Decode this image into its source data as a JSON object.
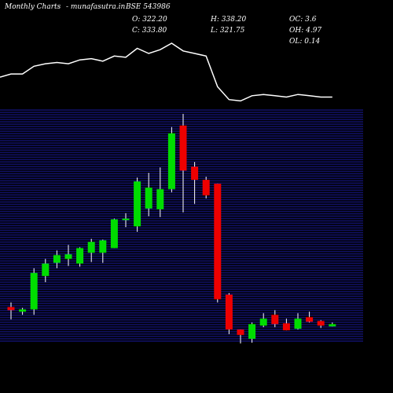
{
  "header": {
    "left": "Monthly Charts",
    "site": "-  munafasutra.in",
    "symbol": "BSE 543986",
    "open_label": "O: 322.20",
    "close_label": "C: 333.80",
    "high_label": "H: 338.20",
    "low_label": "L: 321.75",
    "oc_label": "OC: 3.6",
    "oh_label": "OH: 4.97",
    "ol_label": "OL: 0.14"
  },
  "colors": {
    "background": "#000000",
    "up": "#00dd00",
    "down": "#ee0000",
    "grid": "#1a1aa0",
    "line": "#ffffff"
  },
  "chart_data": {
    "type": "candlestick",
    "grid": true,
    "ylim": [
      200,
      500
    ],
    "candles": [
      {
        "o": 246,
        "h": 252,
        "l": 230,
        "c": 242
      },
      {
        "o": 240,
        "h": 245,
        "l": 236,
        "c": 243
      },
      {
        "o": 243,
        "h": 296,
        "l": 236,
        "c": 290
      },
      {
        "o": 286,
        "h": 308,
        "l": 278,
        "c": 302
      },
      {
        "o": 303,
        "h": 319,
        "l": 296,
        "c": 313
      },
      {
        "o": 308,
        "h": 326,
        "l": 299,
        "c": 314
      },
      {
        "o": 302,
        "h": 323,
        "l": 298,
        "c": 322
      },
      {
        "o": 316,
        "h": 334,
        "l": 304,
        "c": 330
      },
      {
        "o": 316,
        "h": 333,
        "l": 303,
        "c": 332
      },
      {
        "o": 322,
        "h": 360,
        "l": 322,
        "c": 359
      },
      {
        "o": 359,
        "h": 367,
        "l": 349,
        "c": 360
      },
      {
        "o": 350,
        "h": 413,
        "l": 343,
        "c": 408
      },
      {
        "o": 373,
        "h": 419,
        "l": 363,
        "c": 400
      },
      {
        "o": 372,
        "h": 426,
        "l": 362,
        "c": 398
      },
      {
        "o": 398,
        "h": 478,
        "l": 394,
        "c": 470
      },
      {
        "o": 480,
        "h": 495,
        "l": 368,
        "c": 422
      },
      {
        "o": 427,
        "h": 433,
        "l": 379,
        "c": 410
      },
      {
        "o": 410,
        "h": 414,
        "l": 386,
        "c": 390
      },
      {
        "o": 405,
        "h": 405,
        "l": 252,
        "c": 256
      },
      {
        "o": 262,
        "h": 264,
        "l": 211,
        "c": 217
      },
      {
        "o": 217,
        "h": 217,
        "l": 199,
        "c": 210
      },
      {
        "o": 205,
        "h": 226,
        "l": 200,
        "c": 224
      },
      {
        "o": 222,
        "h": 238,
        "l": 220,
        "c": 231
      },
      {
        "o": 236,
        "h": 242,
        "l": 220,
        "c": 224
      },
      {
        "o": 225,
        "h": 231,
        "l": 216,
        "c": 216
      },
      {
        "o": 218,
        "h": 238,
        "l": 217,
        "c": 231
      },
      {
        "o": 233,
        "h": 240,
        "l": 226,
        "c": 227
      },
      {
        "o": 228,
        "h": 229,
        "l": 219,
        "c": 222
      },
      {
        "o": 221,
        "h": 226,
        "l": 221,
        "c": 224
      }
    ],
    "volume": [
      22,
      22,
      28,
      30,
      31,
      30,
      33,
      34,
      32,
      36,
      35,
      42,
      38,
      41,
      46,
      40,
      38,
      36,
      12,
      2,
      1,
      5,
      6,
      5,
      4,
      6,
      5,
      4,
      4
    ]
  }
}
